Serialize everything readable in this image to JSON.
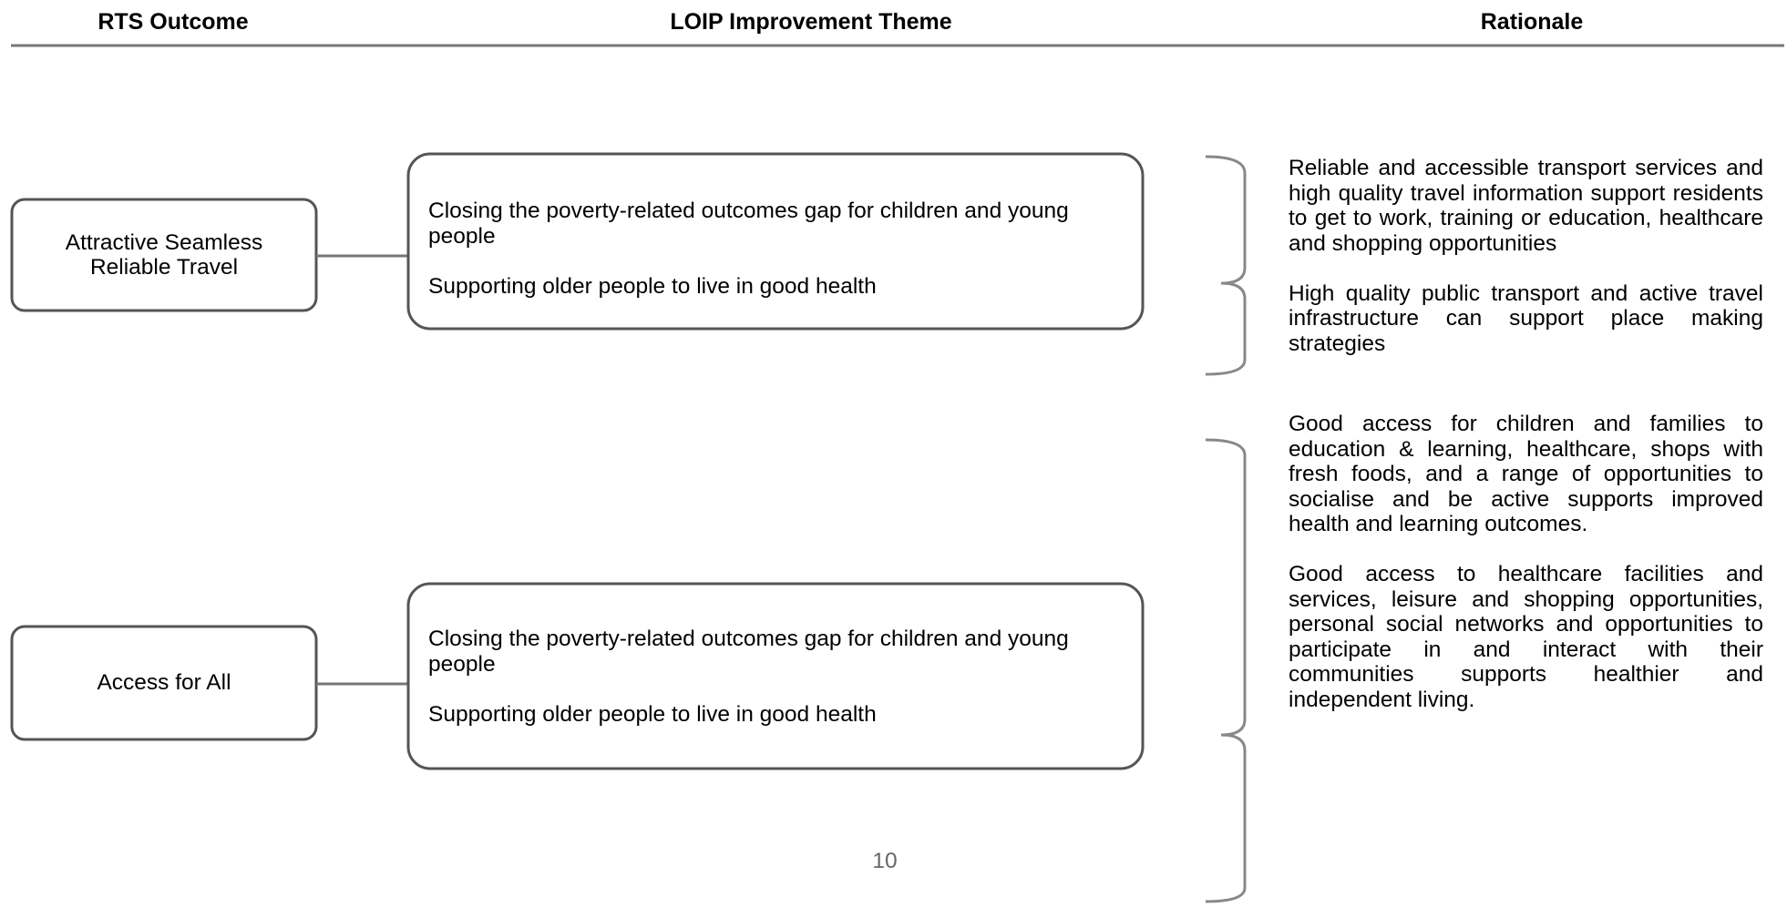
{
  "header": {
    "columns": [
      "RTS Outcome",
      "LOIP Improvement Theme",
      "Rationale"
    ]
  },
  "rows": [
    {
      "outcome": "Attractive Seamless Reliable Travel",
      "themes": [
        "Closing the poverty-related outcomes gap for children and young people",
        "Supporting older people to live in good health"
      ],
      "rationale": [
        "Reliable and accessible transport services and high quality travel information support residents to get to work, training or education, healthcare and shopping opportunities",
        "High quality public transport and active travel infrastructure can support place making strategies"
      ]
    },
    {
      "outcome": "Access for All",
      "themes": [
        "Closing the poverty-related outcomes gap for children and young people",
        "Supporting older people to live in good health"
      ],
      "rationale": [
        "Good access for children and families to education & learning, healthcare, shops with fresh foods, and a range of opportunities to socialise and be active supports improved health and learning outcomes.",
        "Good access to healthcare facilities and services, leisure and shopping opportunities, personal social networks and opportunities to participate in and interact with their communities supports healthier and independent living."
      ]
    }
  ],
  "footer": {
    "page_number": "10"
  }
}
